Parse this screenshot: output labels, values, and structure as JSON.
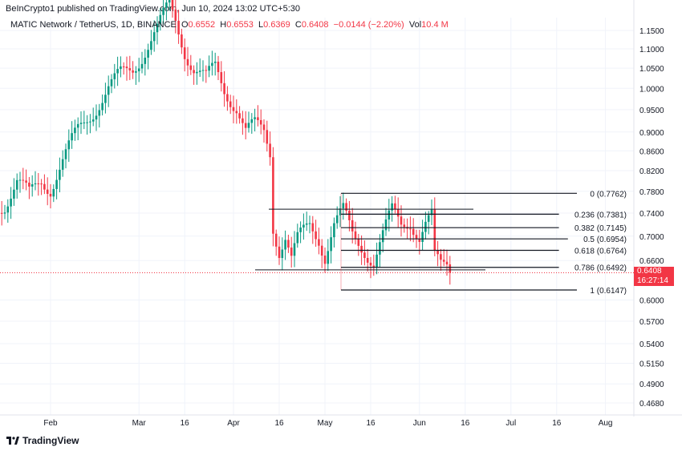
{
  "header": {
    "published": "BeInCrypto1 published on TradingView.com, Jun 10, 2024 13:02 UTC+5:30"
  },
  "legend": {
    "symbol": "MATIC Network / TetherUS, 1D, BINANCE",
    "o_label": "O",
    "o": "0.6552",
    "h_label": "H",
    "h": "0.6553",
    "l_label": "L",
    "l": "0.6369",
    "c_label": "C",
    "c": "0.6408",
    "change": "−0.0144 (−2.20%)",
    "vol_label": "Vol",
    "vol": "10.4 M"
  },
  "price_label": {
    "price": "0.6408",
    "countdown": "16:27:14"
  },
  "footer": {
    "brand": "TradingView"
  },
  "colors": {
    "up": "#089981",
    "down": "#f23645",
    "fib": "#131722"
  },
  "chart_data": {
    "type": "candlestick",
    "title": "MATIC Network / TetherUS, 1D, BINANCE",
    "scale": "log",
    "yticks": [
      "1.1500",
      "1.1000",
      "1.0500",
      "1.0000",
      "0.9500",
      "0.9000",
      "0.8600",
      "0.8200",
      "0.7800",
      "0.7400",
      "0.7000",
      "0.6600",
      "0.6000",
      "0.5700",
      "0.5400",
      "0.5150",
      "0.4900",
      "0.4680"
    ],
    "xticks": [
      {
        "label": "Feb",
        "day": 31
      },
      {
        "label": "Mar",
        "day": 60
      },
      {
        "label": "16",
        "day": 75
      },
      {
        "label": "Apr",
        "day": 91
      },
      {
        "label": "16",
        "day": 106
      },
      {
        "label": "May",
        "day": 121
      },
      {
        "label": "16",
        "day": 136
      },
      {
        "label": "Jun",
        "day": 152
      },
      {
        "label": "16",
        "day": 167
      },
      {
        "label": "Jul",
        "day": 182
      },
      {
        "label": "16",
        "day": 197
      },
      {
        "label": "Aug",
        "day": 213
      }
    ],
    "close_keypoints": [
      [
        5,
        0.78
      ],
      [
        8,
        0.71
      ],
      [
        11,
        0.74
      ],
      [
        16,
        0.76
      ],
      [
        20,
        0.8
      ],
      [
        24,
        0.77
      ],
      [
        28,
        0.8
      ],
      [
        31,
        0.79
      ],
      [
        35,
        0.84
      ],
      [
        40,
        0.9
      ],
      [
        45,
        0.95
      ],
      [
        50,
        1.0
      ],
      [
        54,
        1.03
      ],
      [
        58,
        1.05
      ],
      [
        62,
        1.1
      ],
      [
        66,
        1.15
      ],
      [
        70,
        1.22
      ],
      [
        72,
        1.18
      ],
      [
        75,
        1.1
      ],
      [
        78,
        1.05
      ],
      [
        82,
        1.02
      ],
      [
        85,
        1.05
      ],
      [
        88,
        1.0
      ],
      [
        92,
        0.96
      ],
      [
        95,
        0.9
      ],
      [
        98,
        0.91
      ],
      [
        101,
        0.9
      ],
      [
        103,
        0.86
      ],
      [
        104,
        0.72
      ],
      [
        106,
        0.68
      ],
      [
        108,
        0.7
      ],
      [
        110,
        0.66
      ],
      [
        112,
        0.69
      ],
      [
        116,
        0.72
      ],
      [
        119,
        0.7
      ],
      [
        121,
        0.67
      ],
      [
        124,
        0.72
      ],
      [
        127,
        0.74
      ],
      [
        130,
        0.7
      ],
      [
        134,
        0.68
      ],
      [
        137,
        0.66
      ],
      [
        140,
        0.7
      ],
      [
        143,
        0.74
      ],
      [
        146,
        0.72
      ],
      [
        149,
        0.73
      ],
      [
        152,
        0.7
      ],
      [
        154,
        0.72
      ],
      [
        156,
        0.73
      ],
      [
        157,
        0.66
      ],
      [
        159,
        0.65
      ],
      [
        161,
        0.6552
      ],
      [
        162,
        0.6408
      ]
    ],
    "fib_levels": [
      {
        "ratio": "0",
        "price": 0.7762,
        "label": "0 (0.7762)"
      },
      {
        "ratio": "0.236",
        "price": 0.7381,
        "label": "0.236 (0.7381)"
      },
      {
        "ratio": "0.382",
        "price": 0.7145,
        "label": "0.382 (0.7145)"
      },
      {
        "ratio": "0.5",
        "price": 0.6954,
        "label": "0.5 (0.6954)"
      },
      {
        "ratio": "0.618",
        "price": 0.6764,
        "label": "0.618 (0.6764)"
      },
      {
        "ratio": "0.786",
        "price": 0.6492,
        "label": "0.786 (0.6492)"
      },
      {
        "ratio": "1",
        "price": 0.6147,
        "label": "1 (0.6147)"
      }
    ],
    "horizontal_lines": [
      0.747,
      0.6452
    ],
    "last_price": 0.6408
  }
}
